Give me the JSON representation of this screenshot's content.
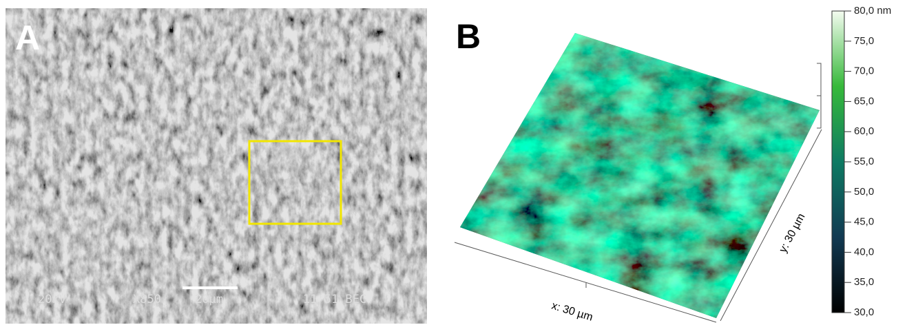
{
  "panel_a": {
    "label": "A",
    "info": {
      "voltage": "20kV",
      "magnification": "X850",
      "scale": "20μm",
      "code": "11 51 BEC"
    }
  },
  "panel_b": {
    "label": "B",
    "x_axis": "x: 30 µm",
    "y_axis": "y: 30 µm",
    "colorbar": {
      "lim": [
        30,
        80
      ],
      "ticks": [
        {
          "value": 80,
          "label": "80,0 nm"
        },
        {
          "value": 75,
          "label": "75,0"
        },
        {
          "value": 70,
          "label": "70,0"
        },
        {
          "value": 65,
          "label": "65,0"
        },
        {
          "value": 60,
          "label": "60,0"
        },
        {
          "value": 55,
          "label": "55,0"
        },
        {
          "value": 50,
          "label": "50,0"
        },
        {
          "value": 45,
          "label": "45,0"
        },
        {
          "value": 40,
          "label": "40,0"
        },
        {
          "value": 35,
          "label": "35,0"
        },
        {
          "value": 30,
          "label": "30,0"
        }
      ]
    }
  }
}
